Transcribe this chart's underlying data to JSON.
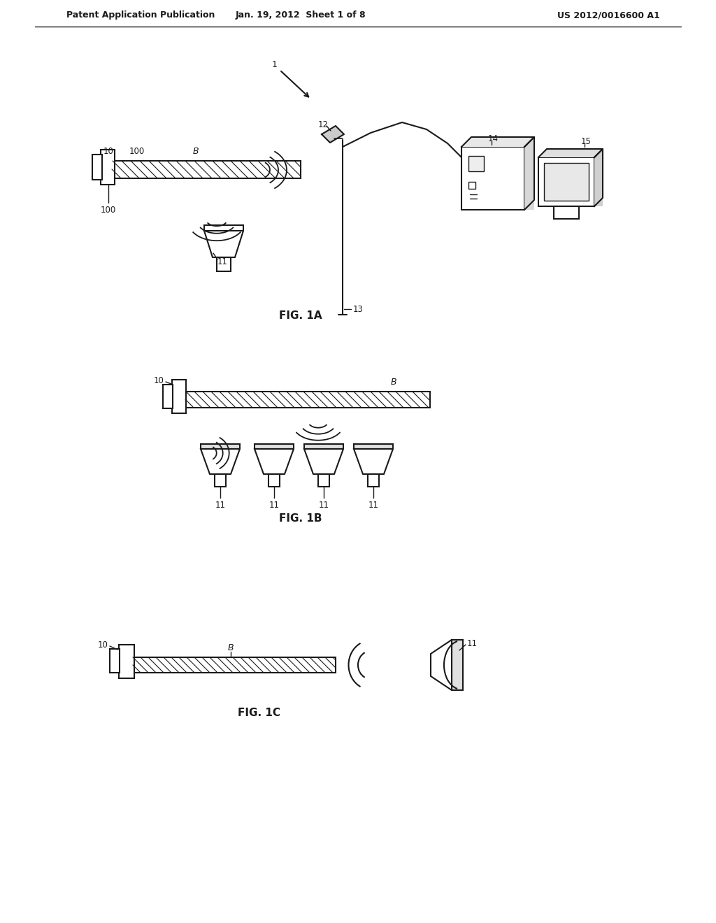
{
  "background_color": "#ffffff",
  "header_left": "Patent Application Publication",
  "header_center": "Jan. 19, 2012  Sheet 1 of 8",
  "header_right": "US 2012/0016600 A1",
  "fig1a_label": "FIG. 1A",
  "fig1b_label": "FIG. 1B",
  "fig1c_label": "FIG. 1C",
  "line_color": "#1a1a1a",
  "text_color": "#1a1a1a"
}
